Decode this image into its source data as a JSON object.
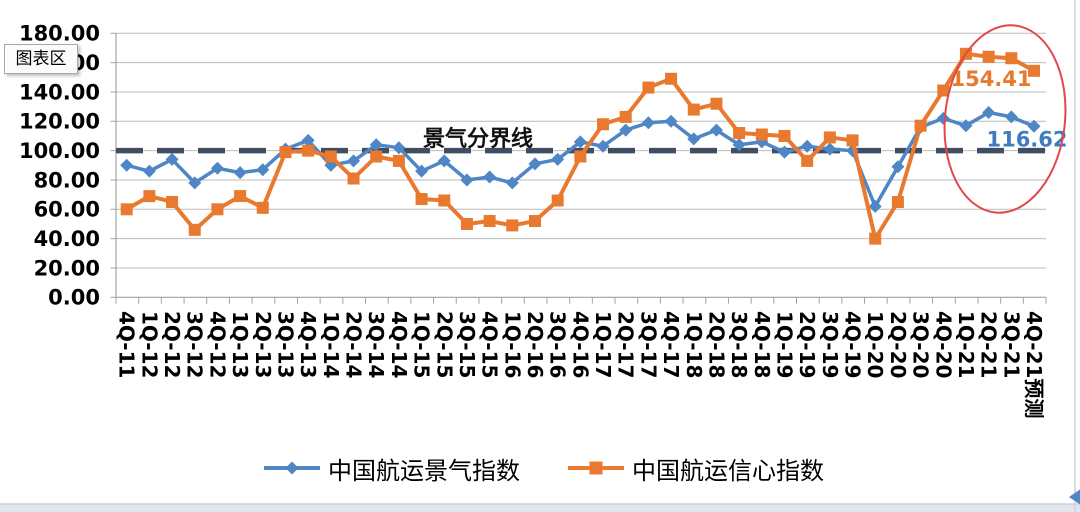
{
  "window": {
    "tooltip_label": "图表区",
    "background": "#ffffff",
    "frame_color": "#c9d2dc",
    "strip_color": "#e0e6ed",
    "scroll_arrow_color": "#4f86c5",
    "scroll_arrow_icon": "left-triangle"
  },
  "chart_data": {
    "type": "line",
    "title": "",
    "xlabel": "",
    "ylabel": "",
    "categories": [
      "4Q-11",
      "1Q-12",
      "2Q-12",
      "3Q-12",
      "4Q-12",
      "1Q-13",
      "2Q-13",
      "3Q-13",
      "4Q-13",
      "1Q-14",
      "2Q-14",
      "3Q-14",
      "4Q-14",
      "1Q-15",
      "2Q-15",
      "3Q-15",
      "4Q-15",
      "1Q-16",
      "2Q-16",
      "3Q-16",
      "4Q-16",
      "1Q-17",
      "2Q-17",
      "3Q-17",
      "4Q-17",
      "1Q-18",
      "2Q-18",
      "3Q-18",
      "4Q-18",
      "1Q-19",
      "2Q-19",
      "3Q-19",
      "4Q-19",
      "1Q-20",
      "2Q-20",
      "3Q-20",
      "4Q-20",
      "1Q-21",
      "2Q-21",
      "3Q-21",
      "4Q-21预测"
    ],
    "series": [
      {
        "name": "中国航运景气指数",
        "color": "#4e86c6",
        "marker": "diamond",
        "values": [
          90,
          86,
          94,
          78,
          88,
          85,
          87,
          101,
          107,
          90,
          93,
          104,
          102,
          86,
          93,
          80,
          82,
          78,
          91,
          94,
          106,
          103,
          114,
          119,
          120,
          108,
          114,
          104,
          106,
          99,
          103,
          101,
          100,
          62,
          89,
          116,
          122,
          117,
          126,
          123,
          116.62
        ]
      },
      {
        "name": "中国航运信心指数",
        "color": "#e8792e",
        "marker": "square",
        "values": [
          60,
          69,
          65,
          46,
          60,
          69,
          61,
          99,
          100,
          96,
          81,
          96,
          93,
          67,
          66,
          50,
          52,
          49,
          52,
          66,
          96,
          118,
          123,
          143,
          149,
          128,
          132,
          112,
          111,
          110,
          93,
          109,
          107,
          40,
          65,
          117,
          141,
          166,
          164,
          163,
          154.41
        ]
      }
    ],
    "reference_line": {
      "value": 100,
      "label": "景气分界线",
      "color": "#3f4e63",
      "style": "dashed"
    },
    "ylim": [
      0,
      180
    ],
    "ytick_step": 20,
    "ytick_labels": [
      "0.00",
      "20.00",
      "40.00",
      "60.00",
      "80.00",
      "100.00",
      "120.00",
      "140.00",
      "160.00",
      "180.00"
    ],
    "grid": true,
    "grid_color": "#bcbcbc",
    "axis_color": "#a3a3a3",
    "text_color": "#000000",
    "legend_position": "bottom",
    "value_labels": [
      {
        "text": "154.41",
        "series": 1,
        "color": "#e8792e"
      },
      {
        "text": "116.62",
        "series": 0,
        "color": "#3e7cc0"
      }
    ],
    "highlight_ellipse": {
      "color": "#e2484b"
    }
  }
}
